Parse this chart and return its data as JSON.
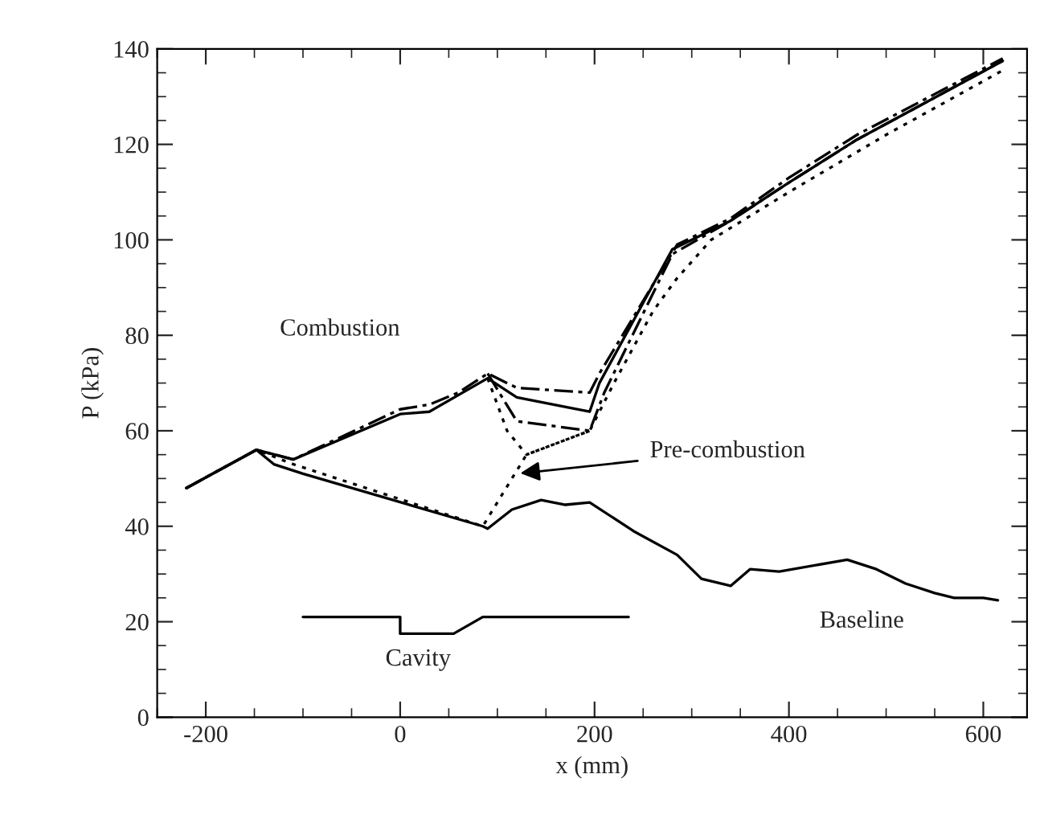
{
  "chart_data": {
    "type": "line",
    "xlabel": "x (mm)",
    "ylabel": "P (kPa)",
    "xlim": [
      -250,
      645
    ],
    "ylim": [
      0,
      140
    ],
    "xticks": [
      -200,
      0,
      200,
      400,
      600
    ],
    "yticks": [
      0,
      20,
      40,
      60,
      80,
      100,
      120,
      140
    ],
    "grid": false,
    "legend": false,
    "marker": "none",
    "series": [
      {
        "color": "#000000",
        "line_style": "solid",
        "x": [
          -220,
          -148,
          -130,
          -100,
          85,
          90,
          115,
          145,
          170,
          195,
          240,
          285,
          310,
          340,
          360,
          390,
          460,
          490,
          520,
          550,
          570,
          600,
          615
        ],
        "values": [
          48,
          56,
          53,
          51,
          40,
          39.5,
          43.5,
          45.5,
          44.5,
          45,
          39,
          34,
          29,
          27.5,
          31,
          30.5,
          33,
          31,
          28,
          26,
          25,
          25,
          24.5
        ]
      },
      {
        "color": "#000000",
        "line_style": "dotted",
        "x": [
          -220,
          -148,
          -110,
          85,
          100,
          130,
          195,
          220,
          260,
          285,
          320,
          400,
          500,
          620
        ],
        "values": [
          48,
          56,
          53,
          40,
          45,
          55,
          60,
          70,
          85,
          92,
          100,
          110,
          122,
          135.5
        ]
      },
      {
        "color": "#000000",
        "line_style": "dashed",
        "x": [
          -220,
          -148,
          -110,
          0,
          30,
          60,
          90,
          120,
          195,
          205,
          285,
          340,
          400,
          470,
          620
        ],
        "values": [
          48,
          56,
          54,
          64.5,
          65.5,
          68,
          72,
          69,
          68,
          72,
          99,
          104.5,
          113,
          122,
          138
        ]
      },
      {
        "color": "#000000",
        "line_style": "solid",
        "x": [
          -220,
          -148,
          -110,
          0,
          30,
          90,
          120,
          195,
          205,
          280,
          340,
          400,
          470,
          620
        ],
        "values": [
          48,
          56,
          54,
          63.5,
          64,
          71,
          67,
          64,
          70,
          98,
          104,
          112,
          121,
          137.5
        ]
      },
      {
        "color": "#000000",
        "line_style": "dashed",
        "x": [
          90,
          120,
          195,
          210,
          280,
          340,
          400,
          470,
          620
        ],
        "values": [
          72,
          62,
          60,
          68,
          97,
          104,
          112,
          121,
          137.5
        ]
      },
      {
        "color": "#000000",
        "line_style": "dotted",
        "x": [
          90,
          110,
          130,
          195
        ],
        "values": [
          71,
          60,
          55,
          60
        ]
      },
      {
        "color": "#000000",
        "line_style": "solid",
        "x": [
          -100,
          0,
          0,
          55,
          85,
          235
        ],
        "values": [
          21,
          21,
          17.5,
          17.5,
          21,
          21
        ]
      }
    ],
    "annotations": [
      "Combustion",
      {
        "text": "Pre-combustion",
        "x": 119,
        "y": 51
      },
      "Baseline",
      "Cavity"
    ]
  }
}
